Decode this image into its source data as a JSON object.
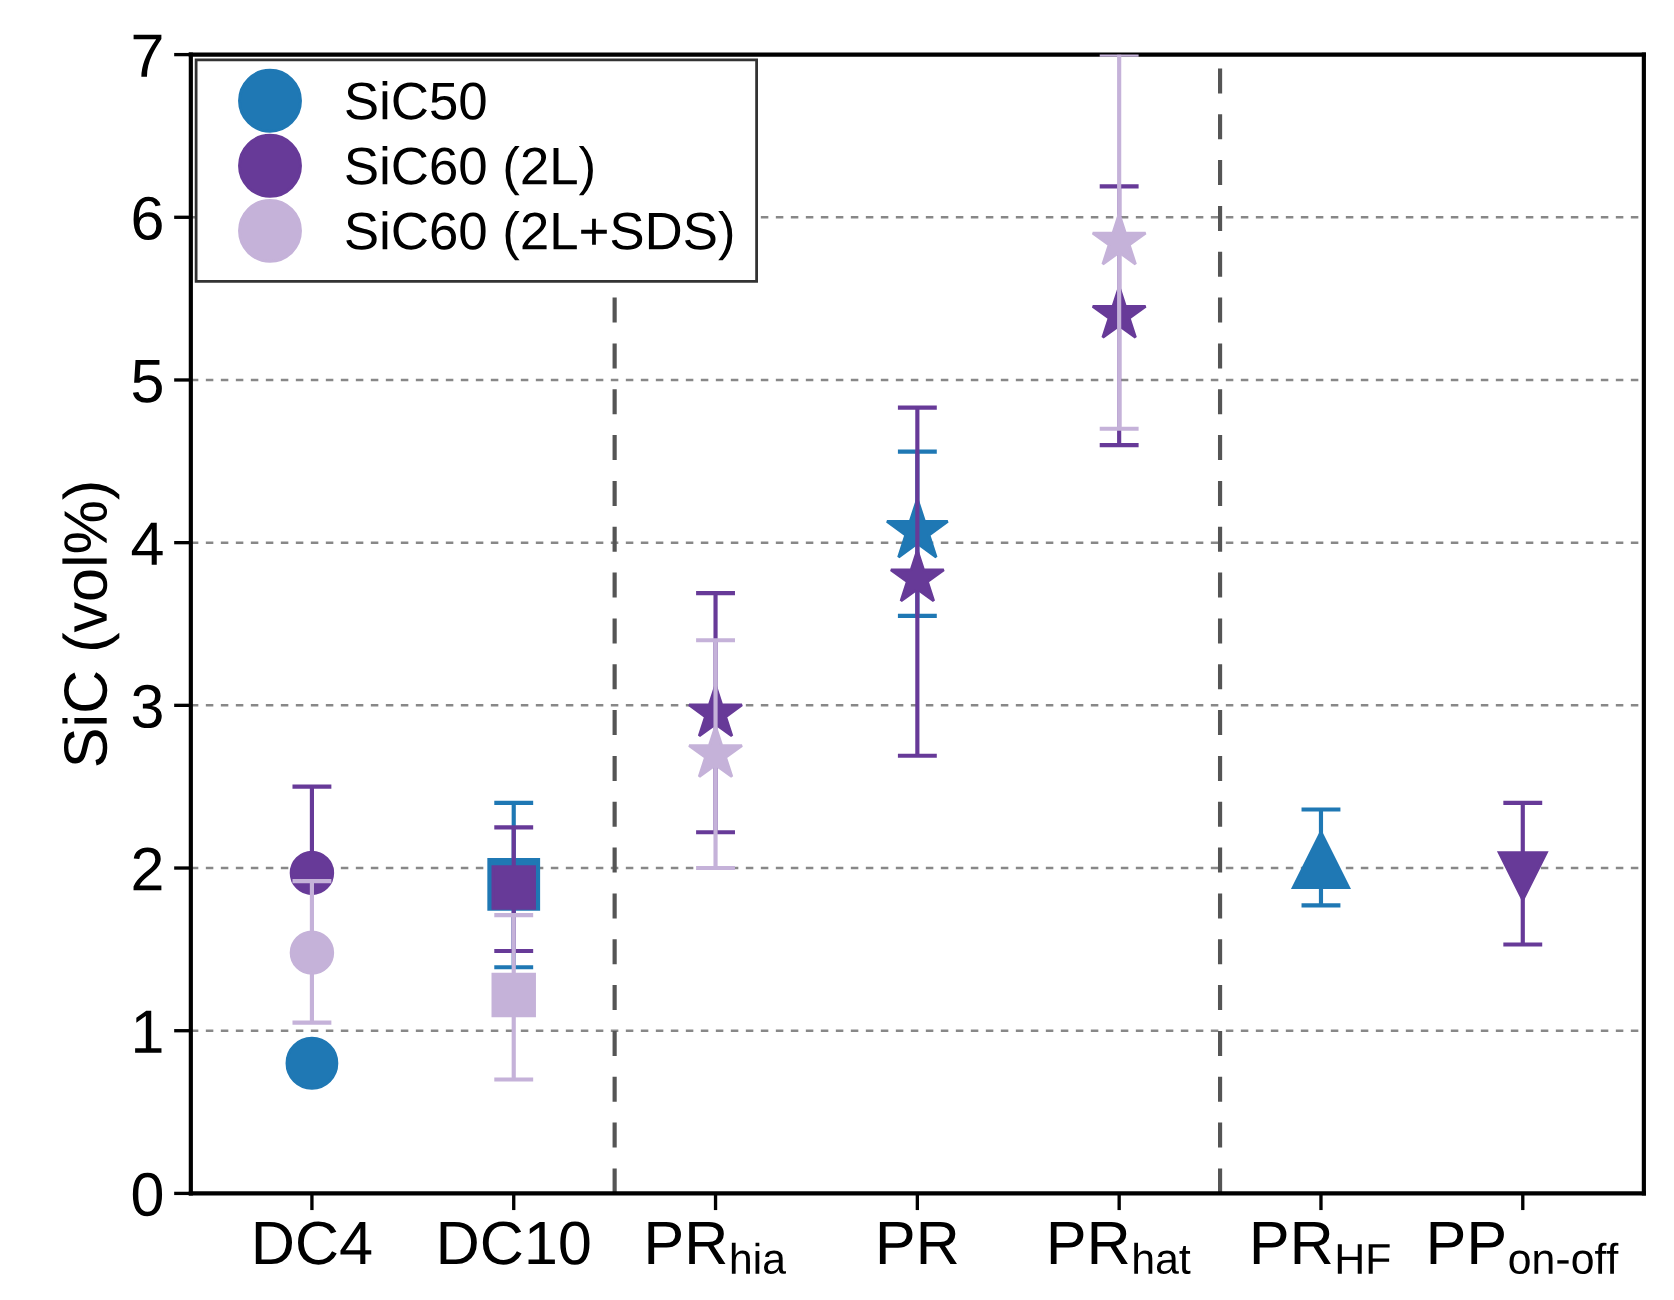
{
  "chart_data": {
    "type": "scatter",
    "ylabel": "SiC (vol%)",
    "categories": [
      "DC4",
      "DC10",
      "PR$_{hia}$",
      "PR",
      "PR$_{hat}$",
      "PR$_{HF}$",
      "PP$_{on-off}$"
    ],
    "series": [
      {
        "name": "SiC50",
        "color": "#1f78b4",
        "values": [
          0.8,
          1.9,
          null,
          4.07,
          null,
          2.05,
          null
        ],
        "errors": [
          null,
          [
            1.39,
            2.4
          ],
          null,
          [
            3.55,
            4.56
          ],
          null,
          [
            1.77,
            2.36
          ],
          null
        ],
        "marker": [
          "circle",
          "square",
          "star",
          "star",
          "star",
          "triangle",
          "triangle_down"
        ]
      },
      {
        "name": "SiC60 (2L)",
        "color": "#673a98",
        "values": [
          1.97,
          1.88,
          2.95,
          3.78,
          5.4,
          null,
          1.95
        ],
        "errors": [
          [
            1.97,
            2.5
          ],
          [
            1.49,
            2.25
          ],
          [
            2.22,
            3.69
          ],
          [
            2.69,
            4.83
          ],
          [
            4.6,
            6.19
          ],
          null,
          [
            1.53,
            2.4
          ]
        ],
        "marker": [
          "circle",
          "square",
          "star",
          "star",
          "star",
          "triangle",
          "triangle_down"
        ]
      },
      {
        "name": "SiC60 (2L+SDS)",
        "color": "#c5b2d9",
        "values": [
          1.48,
          1.22,
          2.7,
          null,
          5.85,
          null,
          null
        ],
        "errors": [
          [
            1.05,
            1.92
          ],
          [
            0.7,
            1.71
          ],
          [
            2.0,
            3.4
          ],
          null,
          [
            4.7,
            7.0
          ],
          null,
          null
        ],
        "marker": [
          "circle",
          "square",
          "star",
          "star",
          "star",
          "triangle",
          "triangle_down"
        ]
      }
    ],
    "ylim": [
      0,
      7
    ],
    "yticks": [
      0,
      1,
      2,
      3,
      4,
      5,
      6,
      7
    ],
    "grid": "y",
    "legend": "top left"
  }
}
